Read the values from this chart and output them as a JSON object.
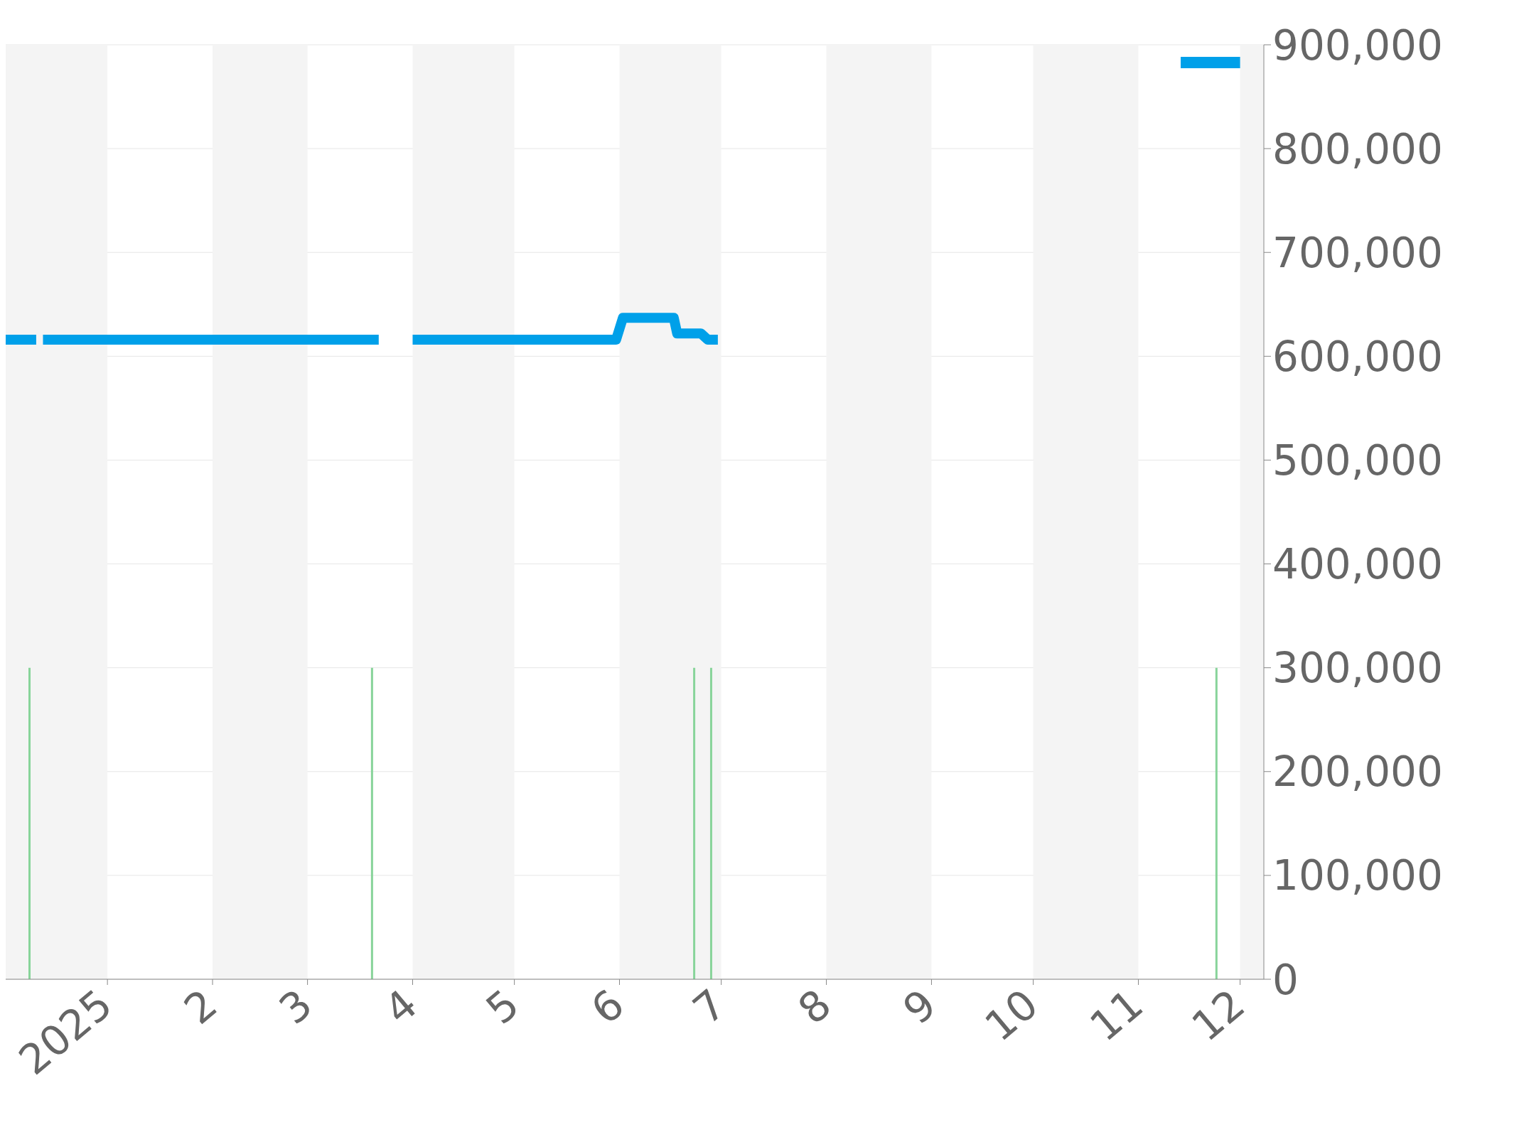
{
  "chart_data": {
    "type": "line",
    "xlim": [
      "2024-12-02",
      "2025-12-08"
    ],
    "xticks": [
      {
        "value": "2025-01-01",
        "label": "2025"
      },
      {
        "value": "2025-02-01",
        "label": "2"
      },
      {
        "value": "2025-03-01",
        "label": "3"
      },
      {
        "value": "2025-04-01",
        "label": "4"
      },
      {
        "value": "2025-05-01",
        "label": "5"
      },
      {
        "value": "2025-06-01",
        "label": "6"
      },
      {
        "value": "2025-07-01",
        "label": "7"
      },
      {
        "value": "2025-08-01",
        "label": "8"
      },
      {
        "value": "2025-09-01",
        "label": "9"
      },
      {
        "value": "2025-10-01",
        "label": "10"
      },
      {
        "value": "2025-11-01",
        "label": "11"
      },
      {
        "value": "2025-12-01",
        "label": "12"
      }
    ],
    "ylim": [
      0,
      900000
    ],
    "yticks": [
      0,
      {
        "value": 100000,
        "label": "100,000"
      },
      {
        "value": 200000,
        "label": "200,000"
      },
      {
        "value": 300000,
        "label": "300,000"
      },
      {
        "value": 400000,
        "label": "400,000"
      },
      {
        "value": 500000,
        "label": "500,000"
      },
      {
        "value": 600000,
        "label": "600,000"
      },
      {
        "value": 700000,
        "label": "700,000"
      },
      {
        "value": 800000,
        "label": "800,000"
      },
      {
        "value": 900000,
        "label": "900,000"
      }
    ],
    "grid": "y",
    "marker": "none",
    "line_style": "solid",
    "series": [
      {
        "color": "#00a0e9",
        "x": [
          "2024-12-02",
          "2024-12-11",
          "2024-12-12",
          "2024-12-13",
          "2025-03-22",
          "2025-03-27",
          "2025-04-01",
          "2025-05-31",
          "2025-06-02",
          "2025-06-17",
          "2025-06-18",
          "2025-06-25",
          "2025-06-27",
          "2025-06-30"
        ],
        "values": [
          616000,
          616000,
          null,
          616000,
          616000,
          null,
          616000,
          616000,
          637000,
          637000,
          622000,
          622000,
          616000,
          616000
        ]
      },
      {
        "type": "bar",
        "color": "#88d49a",
        "x": [
          "2024-12-09",
          "2025-03-20",
          "2025-06-23",
          "2025-06-28",
          "2025-11-24"
        ],
        "values": [
          300000,
          300000,
          300000,
          300000,
          300000
        ]
      }
    ],
    "bands": [
      {
        "axis": "x",
        "from": "2024-12-02",
        "to": "2025-01-01",
        "color": "#f4f4f4"
      },
      {
        "axis": "x",
        "from": "2025-02-01",
        "to": "2025-03-01",
        "color": "#f4f4f4"
      },
      {
        "axis": "x",
        "from": "2025-04-01",
        "to": "2025-05-01",
        "color": "#f4f4f4"
      },
      {
        "axis": "x",
        "from": "2025-06-01",
        "to": "2025-07-01",
        "color": "#f4f4f4"
      },
      {
        "axis": "x",
        "from": "2025-08-01",
        "to": "2025-09-01",
        "color": "#f4f4f4"
      },
      {
        "axis": "x",
        "from": "2025-10-01",
        "to": "2025-11-01",
        "color": "#f4f4f4"
      },
      {
        "axis": "x",
        "from": "2025-12-01",
        "to": "2025-12-08",
        "color": "#f4f4f4"
      }
    ]
  }
}
